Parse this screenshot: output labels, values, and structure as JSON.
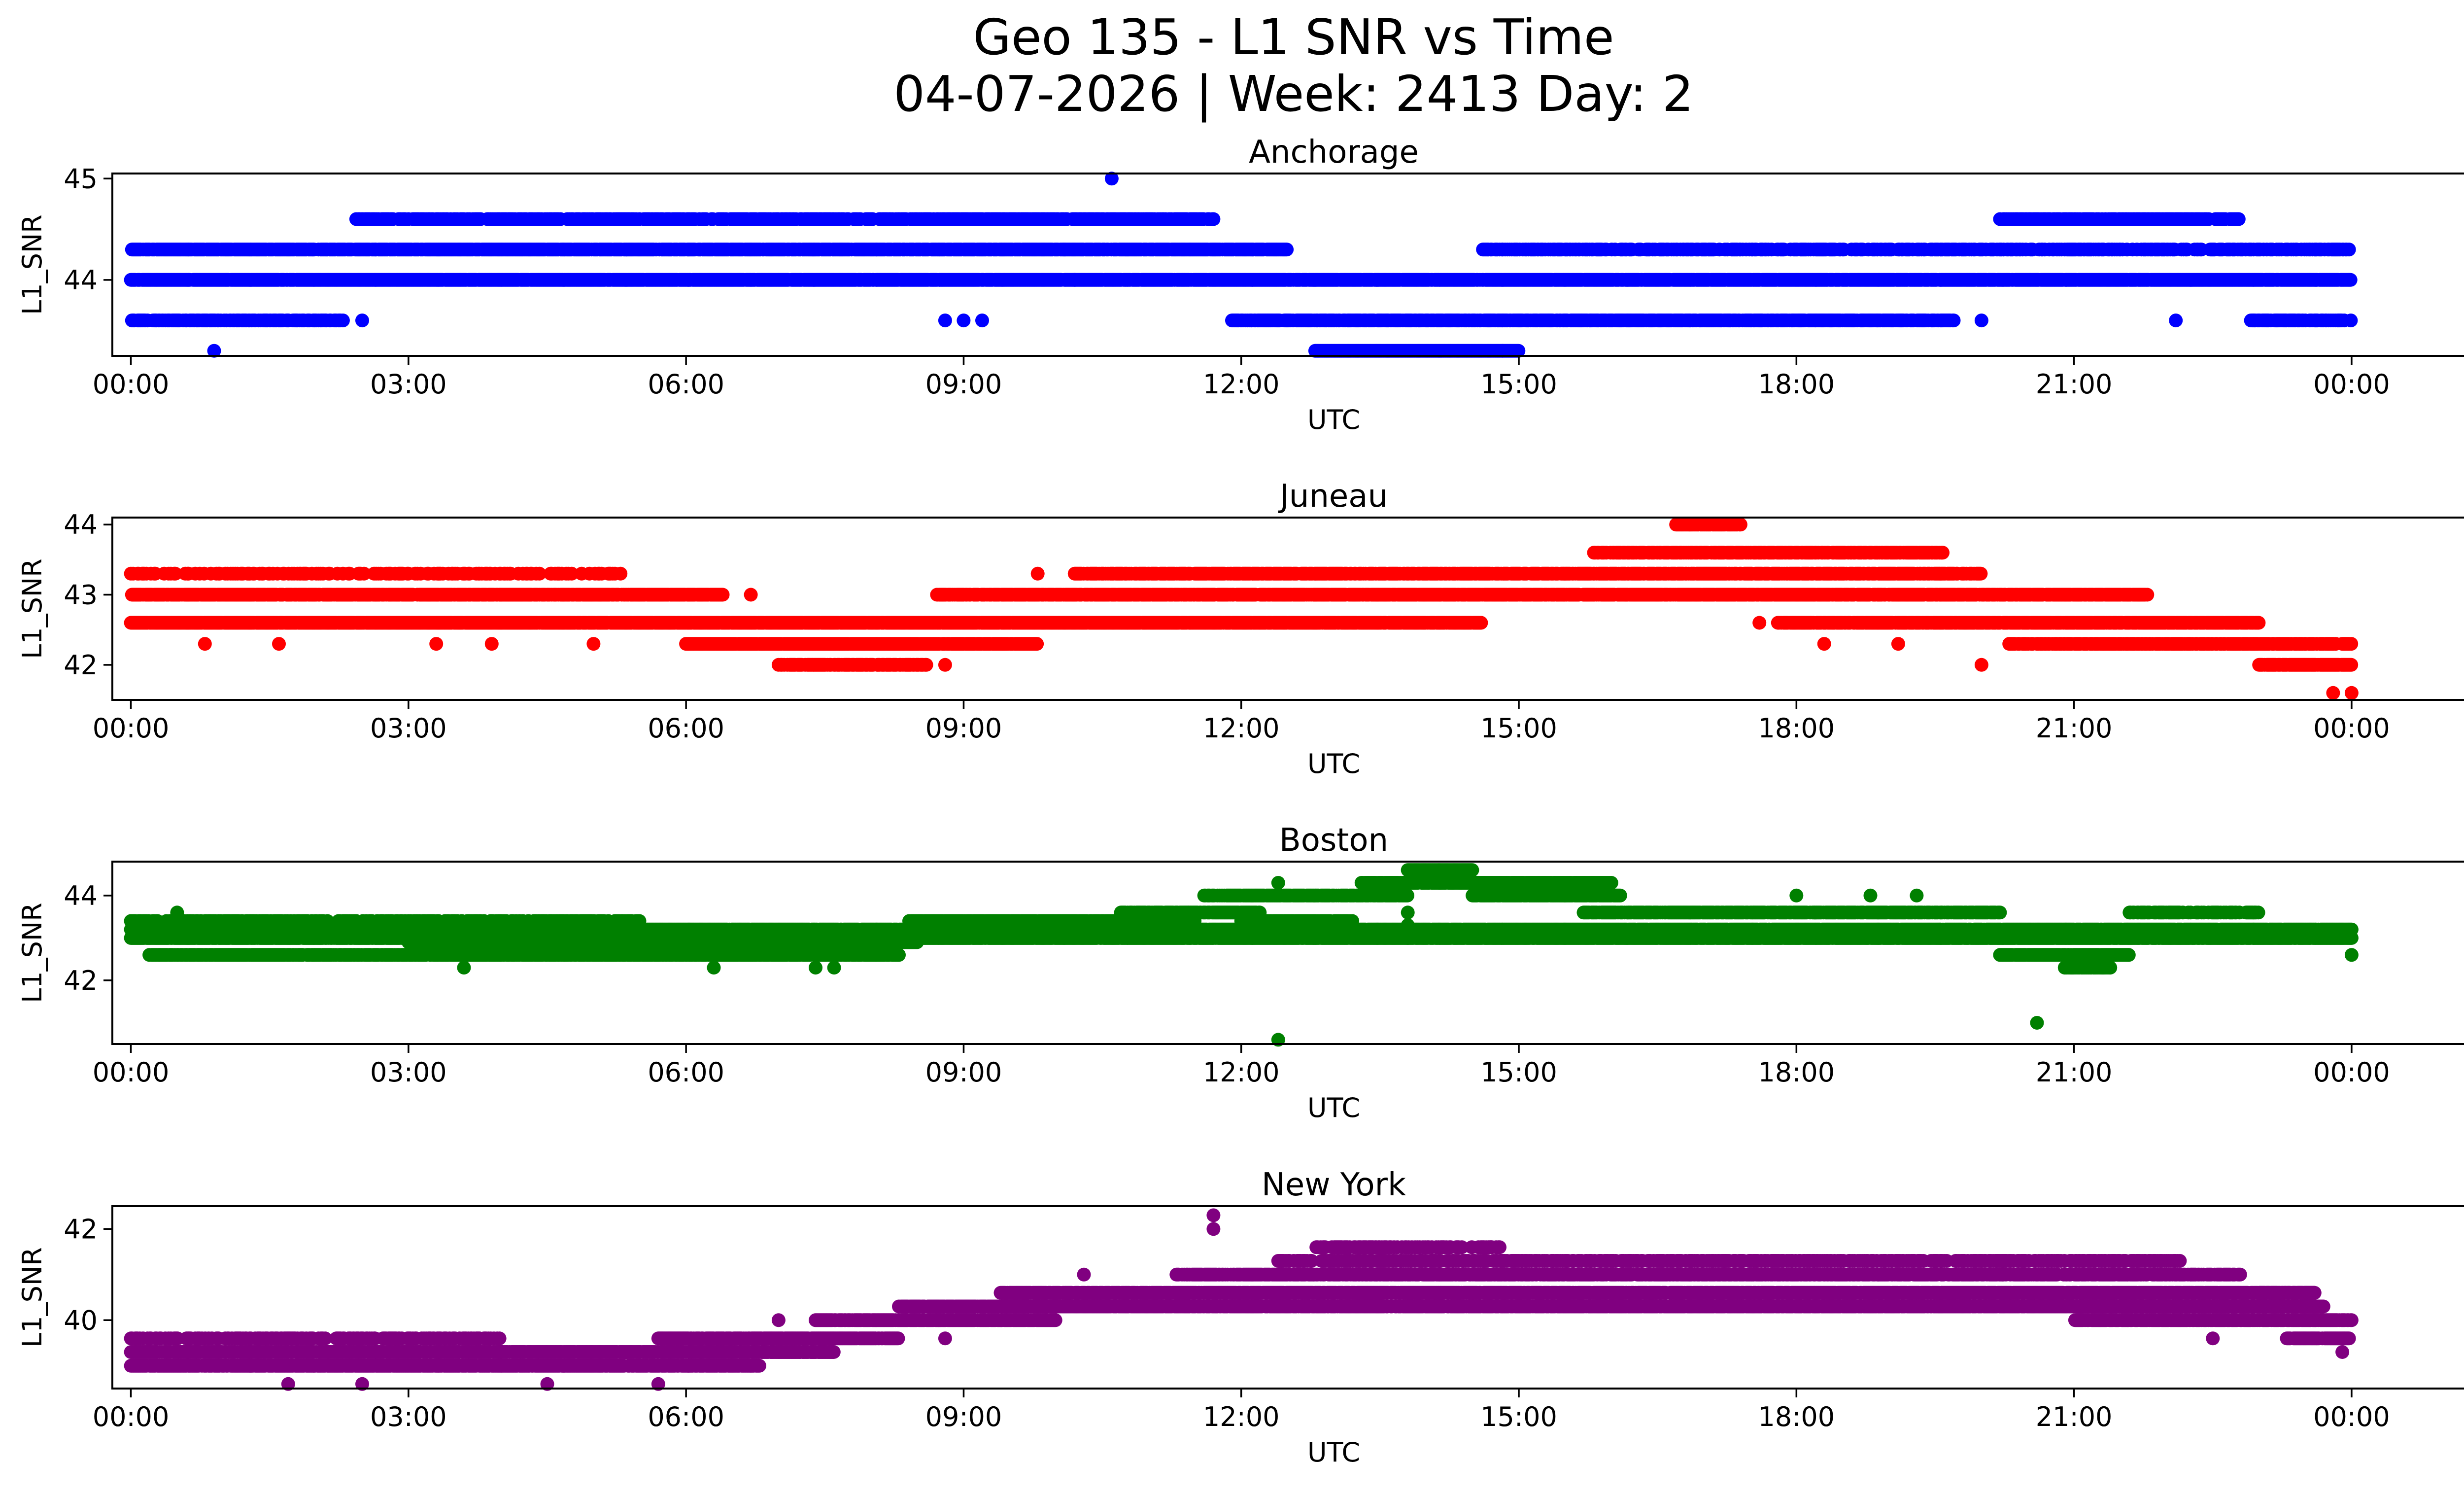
{
  "figure": {
    "title_line1": "Geo 135 - L1 SNR vs Time",
    "title_line2": "04-07-2026 | Week: 2413 Day: 2"
  },
  "chart_data": [
    {
      "type": "scatter",
      "title": "Anchorage",
      "xlabel": "UTC",
      "ylabel": "L1_SNR",
      "color": "#0000ff",
      "xlim": [
        -0.2,
        26.2
      ],
      "ylim": [
        43.25,
        45.05
      ],
      "x_ticks": [
        0,
        3,
        6,
        9,
        12,
        15,
        18,
        21,
        24
      ],
      "x_tick_labels": [
        "00:00",
        "03:00",
        "06:00",
        "09:00",
        "12:00",
        "15:00",
        "18:00",
        "21:00",
        "00:00"
      ],
      "y_ticks": [
        44,
        45
      ],
      "y_tick_labels": [
        "44",
        "45"
      ],
      "bands": [
        {
          "y": 44.0,
          "start": 0.0,
          "end": 24.0,
          "density": 0.95
        },
        {
          "y": 44.3,
          "start": 0.0,
          "end": 12.5,
          "density": 0.9
        },
        {
          "y": 44.3,
          "start": 14.6,
          "end": 24.0,
          "density": 0.55
        },
        {
          "y": 44.6,
          "start": 2.4,
          "end": 11.7,
          "density": 0.7
        },
        {
          "y": 44.6,
          "start": 20.2,
          "end": 22.8,
          "density": 0.7
        },
        {
          "y": 43.6,
          "start": 0.0,
          "end": 2.3,
          "density": 0.7
        },
        {
          "y": 43.6,
          "start": 11.9,
          "end": 19.7,
          "density": 0.85
        },
        {
          "y": 43.6,
          "start": 22.9,
          "end": 24.0,
          "density": 0.7
        },
        {
          "y": 43.3,
          "start": 12.8,
          "end": 15.0,
          "density": 1.0
        }
      ],
      "points": [
        {
          "x": 0.9,
          "y": 43.3
        },
        {
          "x": 10.6,
          "y": 45.0
        },
        {
          "x": 8.8,
          "y": 43.6
        },
        {
          "x": 9.0,
          "y": 43.6
        },
        {
          "x": 9.2,
          "y": 43.6
        },
        {
          "x": 2.5,
          "y": 43.6
        },
        {
          "x": 20.0,
          "y": 43.6
        },
        {
          "x": 22.1,
          "y": 43.6
        },
        {
          "x": 10.2,
          "y": 44.0
        }
      ]
    },
    {
      "type": "scatter",
      "title": "Juneau",
      "xlabel": "UTC",
      "ylabel": "L1_SNR",
      "color": "#ff0000",
      "xlim": [
        -0.2,
        26.2
      ],
      "ylim": [
        41.5,
        44.1
      ],
      "x_ticks": [
        0,
        3,
        6,
        9,
        12,
        15,
        18,
        21,
        24
      ],
      "x_tick_labels": [
        "00:00",
        "03:00",
        "06:00",
        "09:00",
        "12:00",
        "15:00",
        "18:00",
        "21:00",
        "00:00"
      ],
      "y_ticks": [
        42,
        43,
        44
      ],
      "y_tick_labels": [
        "42",
        "43",
        "44"
      ],
      "bands": [
        {
          "y": 42.6,
          "start": 0.0,
          "end": 14.6,
          "density": 0.95
        },
        {
          "y": 43.0,
          "start": 0.0,
          "end": 6.4,
          "density": 0.9
        },
        {
          "y": 43.0,
          "start": 8.7,
          "end": 21.8,
          "density": 0.85
        },
        {
          "y": 42.3,
          "start": 6.0,
          "end": 9.8,
          "density": 0.95
        },
        {
          "y": 43.3,
          "start": 0.0,
          "end": 5.3,
          "density": 0.35
        },
        {
          "y": 43.3,
          "start": 10.2,
          "end": 20.0,
          "density": 0.8
        },
        {
          "y": 42.6,
          "start": 17.8,
          "end": 23.0,
          "density": 0.85
        },
        {
          "y": 42.3,
          "start": 20.3,
          "end": 24.0,
          "density": 0.75
        },
        {
          "y": 42.0,
          "start": 23.0,
          "end": 24.0,
          "density": 0.9
        },
        {
          "y": 43.6,
          "start": 15.8,
          "end": 19.6,
          "density": 0.7
        },
        {
          "y": 42.0,
          "start": 7.0,
          "end": 8.6,
          "density": 0.7
        },
        {
          "y": 44.0,
          "start": 16.7,
          "end": 17.4,
          "density": 0.9
        }
      ],
      "points": [
        {
          "x": 23.8,
          "y": 41.6
        },
        {
          "x": 24.0,
          "y": 41.6
        },
        {
          "x": 20.0,
          "y": 42.0
        },
        {
          "x": 8.8,
          "y": 42.0
        },
        {
          "x": 3.3,
          "y": 42.3
        },
        {
          "x": 3.9,
          "y": 42.3
        },
        {
          "x": 0.8,
          "y": 42.3
        },
        {
          "x": 1.6,
          "y": 42.3
        },
        {
          "x": 5.0,
          "y": 42.3
        },
        {
          "x": 6.7,
          "y": 43.0
        },
        {
          "x": 9.8,
          "y": 43.3
        },
        {
          "x": 11.3,
          "y": 42.6
        },
        {
          "x": 12.2,
          "y": 42.6
        },
        {
          "x": 17.6,
          "y": 42.6
        },
        {
          "x": 18.3,
          "y": 42.3
        },
        {
          "x": 19.1,
          "y": 42.3
        }
      ]
    },
    {
      "type": "scatter",
      "title": "Boston",
      "xlabel": "UTC",
      "ylabel": "L1_SNR",
      "color": "#008000",
      "xlim": [
        -0.2,
        26.2
      ],
      "ylim": [
        40.5,
        44.8
      ],
      "x_ticks": [
        0,
        3,
        6,
        9,
        12,
        15,
        18,
        21,
        24
      ],
      "x_tick_labels": [
        "00:00",
        "03:00",
        "06:00",
        "09:00",
        "12:00",
        "15:00",
        "18:00",
        "21:00",
        "00:00"
      ],
      "y_ticks": [
        42,
        44
      ],
      "y_tick_labels": [
        "42",
        "44"
      ],
      "bands": [
        {
          "y": 43.2,
          "start": 0.0,
          "end": 24.0,
          "density": 0.95
        },
        {
          "y": 43.0,
          "start": 0.0,
          "end": 24.0,
          "density": 0.95
        },
        {
          "y": 42.9,
          "start": 3.0,
          "end": 8.5,
          "density": 0.95
        },
        {
          "y": 42.6,
          "start": 0.2,
          "end": 8.3,
          "density": 0.8
        },
        {
          "y": 43.4,
          "start": 0.0,
          "end": 5.5,
          "density": 0.5
        },
        {
          "y": 43.4,
          "start": 8.4,
          "end": 11.5,
          "density": 0.9
        },
        {
          "y": 43.6,
          "start": 10.7,
          "end": 12.2,
          "density": 0.9
        },
        {
          "y": 43.6,
          "start": 15.7,
          "end": 20.2,
          "density": 0.85
        },
        {
          "y": 44.0,
          "start": 11.6,
          "end": 13.8,
          "density": 0.9
        },
        {
          "y": 44.3,
          "start": 13.3,
          "end": 16.0,
          "density": 0.95
        },
        {
          "y": 44.6,
          "start": 13.8,
          "end": 14.5,
          "density": 1.0
        },
        {
          "y": 44.0,
          "start": 14.5,
          "end": 16.1,
          "density": 0.9
        },
        {
          "y": 43.4,
          "start": 12.0,
          "end": 13.2,
          "density": 0.9
        },
        {
          "y": 42.6,
          "start": 20.2,
          "end": 21.6,
          "density": 0.9
        },
        {
          "y": 42.3,
          "start": 20.9,
          "end": 21.4,
          "density": 0.9
        },
        {
          "y": 43.6,
          "start": 21.6,
          "end": 23.0,
          "density": 0.6
        }
      ],
      "points": [
        {
          "x": 12.4,
          "y": 40.6
        },
        {
          "x": 20.6,
          "y": 41.0
        },
        {
          "x": 13.8,
          "y": 43.0
        },
        {
          "x": 13.8,
          "y": 43.3
        },
        {
          "x": 13.8,
          "y": 43.6
        },
        {
          "x": 6.3,
          "y": 42.3
        },
        {
          "x": 3.6,
          "y": 42.3
        },
        {
          "x": 7.4,
          "y": 42.3
        },
        {
          "x": 7.6,
          "y": 42.3
        },
        {
          "x": 12.4,
          "y": 44.3
        },
        {
          "x": 18.0,
          "y": 44.0
        },
        {
          "x": 18.8,
          "y": 44.0
        },
        {
          "x": 19.3,
          "y": 44.0
        },
        {
          "x": 24.0,
          "y": 42.6
        },
        {
          "x": 0.3,
          "y": 42.6
        },
        {
          "x": 0.5,
          "y": 43.6
        }
      ]
    },
    {
      "type": "scatter",
      "title": "New York",
      "xlabel": "UTC",
      "ylabel": "L1_SNR",
      "color": "#800080",
      "xlim": [
        -0.2,
        26.2
      ],
      "ylim": [
        38.5,
        42.5
      ],
      "x_ticks": [
        0,
        3,
        6,
        9,
        12,
        15,
        18,
        21,
        24
      ],
      "x_tick_labels": [
        "00:00",
        "03:00",
        "06:00",
        "09:00",
        "12:00",
        "15:00",
        "18:00",
        "21:00",
        "00:00"
      ],
      "y_ticks": [
        40,
        42
      ],
      "y_tick_labels": [
        "40",
        "42"
      ],
      "bands": [
        {
          "y": 39.0,
          "start": 0.0,
          "end": 6.8,
          "density": 0.9
        },
        {
          "y": 39.3,
          "start": 0.0,
          "end": 7.6,
          "density": 0.95
        },
        {
          "y": 39.6,
          "start": 0.0,
          "end": 4.0,
          "density": 0.5
        },
        {
          "y": 39.6,
          "start": 5.7,
          "end": 8.3,
          "density": 0.9
        },
        {
          "y": 40.0,
          "start": 7.4,
          "end": 10.0,
          "density": 0.9
        },
        {
          "y": 40.3,
          "start": 8.3,
          "end": 23.7,
          "density": 0.9
        },
        {
          "y": 40.6,
          "start": 9.4,
          "end": 23.6,
          "density": 0.9
        },
        {
          "y": 41.0,
          "start": 11.3,
          "end": 22.8,
          "density": 0.75
        },
        {
          "y": 41.3,
          "start": 12.4,
          "end": 22.2,
          "density": 0.6
        },
        {
          "y": 41.6,
          "start": 12.8,
          "end": 14.8,
          "density": 0.5
        },
        {
          "y": 40.0,
          "start": 21.0,
          "end": 24.0,
          "density": 0.8
        },
        {
          "y": 39.6,
          "start": 23.3,
          "end": 24.0,
          "density": 0.8
        },
        {
          "y": 40.6,
          "start": 23.0,
          "end": 23.6,
          "density": 0.8
        }
      ],
      "points": [
        {
          "x": 11.7,
          "y": 42.3
        },
        {
          "x": 11.7,
          "y": 42.0
        },
        {
          "x": 1.7,
          "y": 38.6
        },
        {
          "x": 2.5,
          "y": 38.6
        },
        {
          "x": 4.5,
          "y": 38.6
        },
        {
          "x": 5.7,
          "y": 38.6
        },
        {
          "x": 8.8,
          "y": 39.6
        },
        {
          "x": 7.0,
          "y": 40.0
        },
        {
          "x": 10.3,
          "y": 41.0
        },
        {
          "x": 14.7,
          "y": 41.6
        },
        {
          "x": 23.9,
          "y": 39.3
        },
        {
          "x": 22.5,
          "y": 39.6
        }
      ]
    }
  ]
}
